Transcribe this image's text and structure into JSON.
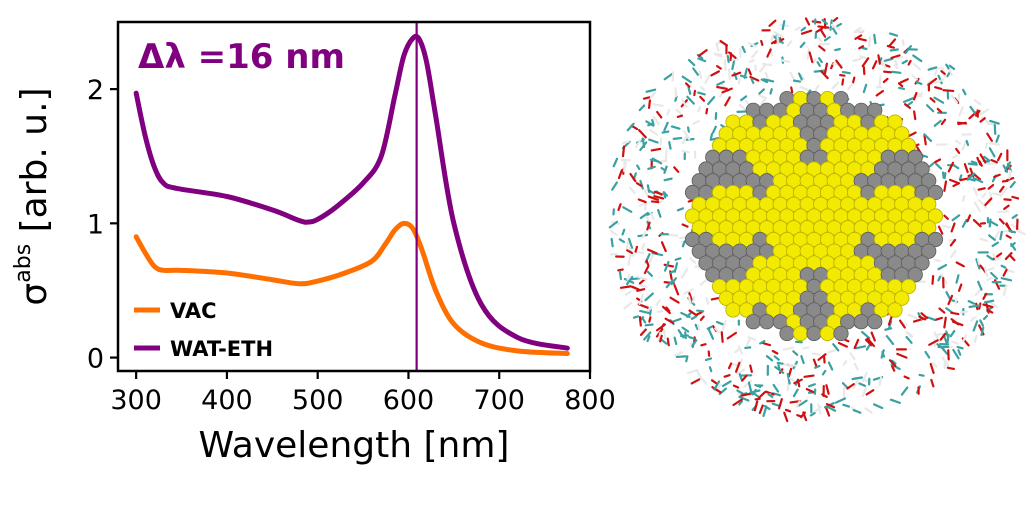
{
  "chart_data": {
    "type": "line",
    "xlabel": "Wavelength [nm]",
    "ylabel_main": "σ",
    "ylabel_sup": "abs",
    "ylabel_rest": " [arb. u.]",
    "xlim": [
      280,
      800
    ],
    "ylim": [
      -0.1,
      2.5
    ],
    "xticks": [
      300,
      400,
      500,
      600,
      700,
      800
    ],
    "yticks": [
      0,
      1,
      2
    ],
    "annotation": "Δλ =16 nm",
    "annotation_color": "#800080",
    "vline_x": 609,
    "vline_color": "#800080",
    "legend_position": "lower-left",
    "series": [
      {
        "name": "VAC",
        "color": "#ff6f00",
        "x": [
          300,
          310,
          320,
          330,
          350,
          400,
          450,
          480,
          500,
          530,
          560,
          575,
          585,
          595,
          605,
          615,
          630,
          650,
          680,
          720,
          775
        ],
        "y": [
          0.9,
          0.78,
          0.68,
          0.65,
          0.65,
          0.63,
          0.58,
          0.55,
          0.57,
          0.63,
          0.72,
          0.85,
          0.95,
          1.0,
          0.96,
          0.8,
          0.5,
          0.25,
          0.11,
          0.05,
          0.03
        ]
      },
      {
        "name": "WAT-ETH",
        "color": "#800080",
        "x": [
          300,
          310,
          320,
          330,
          345,
          400,
          450,
          480,
          490,
          500,
          520,
          550,
          570,
          585,
          595,
          605,
          612,
          620,
          630,
          650,
          680,
          720,
          775
        ],
        "y": [
          1.97,
          1.65,
          1.42,
          1.3,
          1.26,
          1.2,
          1.1,
          1.02,
          1.01,
          1.03,
          1.12,
          1.3,
          1.5,
          1.95,
          2.25,
          2.38,
          2.37,
          2.2,
          1.8,
          1.0,
          0.4,
          0.15,
          0.07
        ]
      }
    ]
  },
  "image_panel": {
    "description_name": "nanoparticle-cluster",
    "colors": {
      "gold": "#f2ea00",
      "silver": "#8a8a8a",
      "water_o": "#d01010",
      "carbon": "#3aa0a0",
      "hydrogen": "#e8e8e8"
    }
  }
}
